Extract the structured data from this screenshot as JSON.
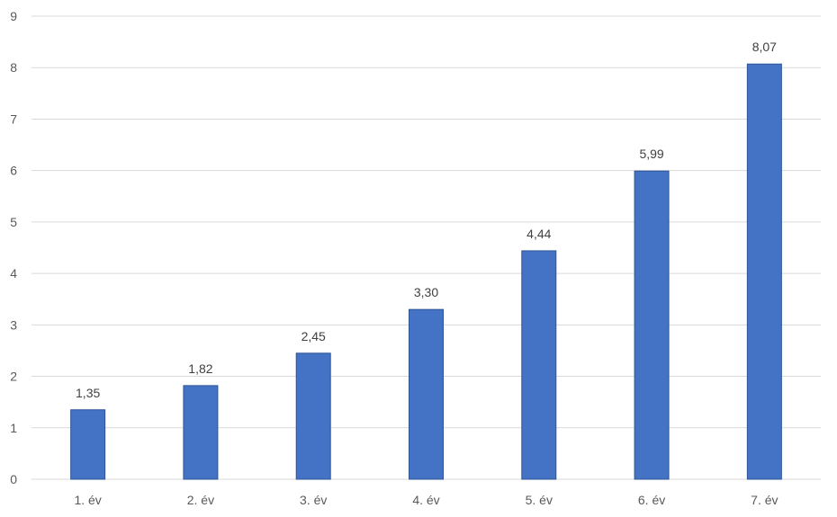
{
  "chart_data": {
    "type": "bar",
    "categories": [
      "1. év",
      "2. év",
      "3. év",
      "4. év",
      "5. év",
      "6. év",
      "7. év"
    ],
    "values": [
      1.35,
      1.82,
      2.45,
      3.3,
      4.44,
      5.99,
      8.07
    ],
    "data_labels": [
      "1,35",
      "1,82",
      "2,45",
      "3,30",
      "4,44",
      "5,99",
      "8,07"
    ],
    "title": "",
    "xlabel": "",
    "ylabel": "",
    "ylim": [
      0,
      9
    ],
    "yticks": [
      0,
      1,
      2,
      3,
      4,
      5,
      6,
      7,
      8,
      9
    ],
    "grid": true,
    "legend": "none",
    "bar_color": "#4472c4",
    "bar_edge_color": "#2f5597"
  }
}
